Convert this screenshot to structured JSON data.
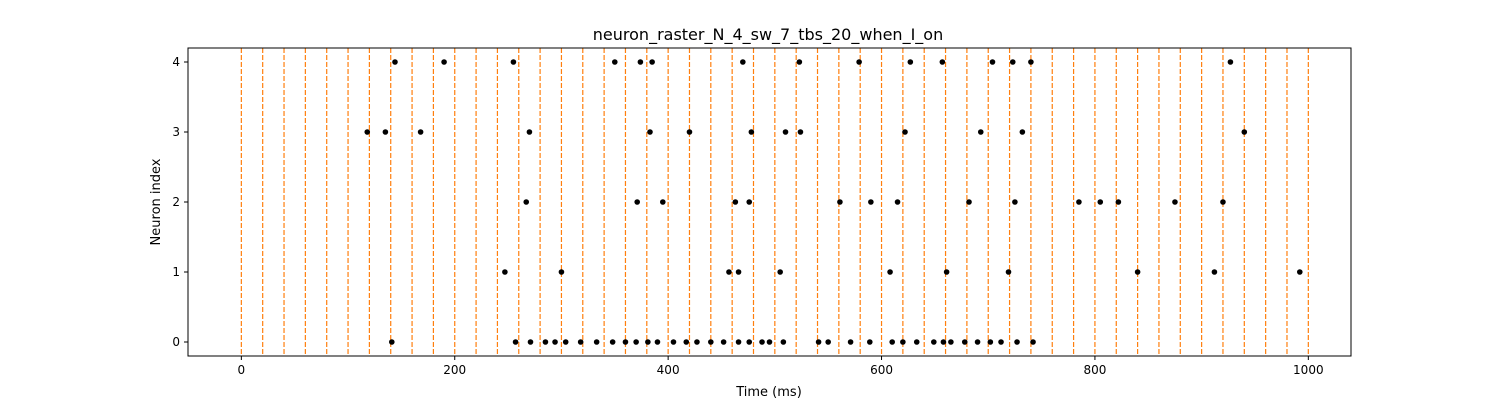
{
  "chart_data": {
    "type": "scatter",
    "title": "neuron_raster_N_4_sw_7_tbs_20_when_I_on",
    "xlabel": "Time (ms)",
    "ylabel": "Neuron index",
    "xlim": [
      -50,
      1040
    ],
    "ylim": [
      -0.2,
      4.2
    ],
    "xticks": [
      0,
      200,
      400,
      600,
      800,
      1000
    ],
    "yticks": [
      0,
      1,
      2,
      3,
      4
    ],
    "grid": false,
    "marker_color": "#000000",
    "line_color": "#ff7f0e",
    "vlines": {
      "style": "dashed",
      "x": [
        0,
        20,
        40,
        60,
        80,
        100,
        120,
        140,
        160,
        180,
        200,
        220,
        240,
        260,
        280,
        300,
        320,
        340,
        360,
        380,
        400,
        420,
        440,
        460,
        480,
        500,
        520,
        540,
        560,
        580,
        600,
        620,
        640,
        660,
        680,
        700,
        720,
        740,
        760,
        780,
        800,
        820,
        840,
        860,
        880,
        900,
        920,
        940,
        960,
        980,
        1000
      ]
    },
    "series": [
      {
        "neuron": 4,
        "x": [
          144,
          190,
          255,
          350,
          374,
          385,
          470,
          523,
          579,
          627,
          657,
          704,
          723,
          740,
          927
        ]
      },
      {
        "neuron": 3,
        "x": [
          118,
          135,
          168,
          270,
          383,
          420,
          478,
          510,
          524,
          622,
          693,
          732,
          940
        ]
      },
      {
        "neuron": 2,
        "x": [
          267,
          371,
          395,
          463,
          476,
          561,
          590,
          615,
          682,
          725,
          785,
          805,
          822,
          875,
          920
        ]
      },
      {
        "neuron": 1,
        "x": [
          247,
          300,
          457,
          466,
          505,
          608,
          661,
          719,
          840,
          912,
          992
        ]
      },
      {
        "neuron": 0,
        "x": [
          141,
          257,
          271,
          285,
          294,
          304,
          318,
          333,
          348,
          360,
          370,
          381,
          390,
          405,
          417,
          427,
          440,
          452,
          466,
          476,
          488,
          495,
          508,
          541,
          550,
          571,
          589,
          610,
          620,
          633,
          649,
          658,
          665,
          678,
          690,
          702,
          712,
          727,
          742
        ]
      }
    ]
  }
}
